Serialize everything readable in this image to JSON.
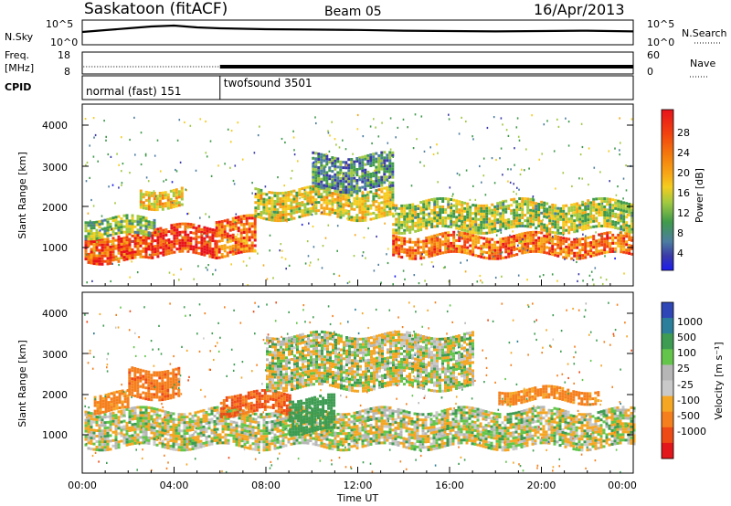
{
  "header": {
    "station": "Saskatoon (fitACF)",
    "beam": "Beam 05",
    "date": "16/Apr/2013"
  },
  "noise_panel": {
    "left_label": "N.Sky",
    "right_label": "N.Search",
    "left_ticks": [
      "10^5",
      "10^0"
    ],
    "right_ticks": [
      "10^5",
      "10^0"
    ]
  },
  "freq_panel": {
    "left_label_line1": "Freq.",
    "left_label_line2": "[MHz]",
    "right_label": "Nave",
    "left_ticks": [
      "18",
      "8"
    ],
    "right_ticks": [
      "60",
      "0"
    ]
  },
  "cpid": {
    "label": "CPID",
    "modes": [
      {
        "name": "normal (fast) 151",
        "start_hour": 0,
        "end_hour": 6
      },
      {
        "name": "twofsound 3501",
        "start_hour": 6,
        "end_hour": 24
      }
    ]
  },
  "power_panel": {
    "ylabel": "Slant Range [km]",
    "yticks": [
      "4000",
      "3000",
      "2000",
      "1000"
    ],
    "colorbar_label": "Power [dB]",
    "colorbar_ticks": [
      "28",
      "24",
      "20",
      "16",
      "12",
      "8",
      "4"
    ],
    "colors": [
      "#e8131b",
      "#f2420f",
      "#f47a0d",
      "#f7a616",
      "#f5cc1f",
      "#a0c941",
      "#3f9a4b",
      "#4c7ea0",
      "#3a3aa8",
      "#1c1cf0"
    ]
  },
  "velocity_panel": {
    "ylabel": "Slant Range [km]",
    "yticks": [
      "4000",
      "3000",
      "2000",
      "1000"
    ],
    "colorbar_label": "Velocity [m s⁻¹]",
    "colorbar_ticks": [
      "1000",
      "500",
      "100",
      "25",
      "-25",
      "-100",
      "-500",
      "-1000"
    ],
    "colors": [
      "#2f47b6",
      "#2c7f9a",
      "#3e9c52",
      "#63c64a",
      "#b6b6b6",
      "#c9c9c9",
      "#f5a623",
      "#f57f1d",
      "#ee4a16",
      "#e3161b"
    ]
  },
  "xaxis": {
    "ticks": [
      "00:00",
      "04:00",
      "08:00",
      "12:00",
      "16:00",
      "20:00",
      "00:00"
    ],
    "label": "Time UT"
  },
  "chart_data": [
    {
      "type": "line",
      "title": "N.Sky / N.Search",
      "x_range_hours": [
        0,
        24
      ],
      "ylim": [
        "10^0",
        "10^5"
      ],
      "yscale": "log",
      "x": [
        0,
        1,
        2,
        3,
        4,
        5,
        6,
        8,
        10,
        12,
        14,
        16,
        18,
        20,
        22,
        24
      ],
      "y_fraction_of_scale": [
        0.55,
        0.65,
        0.75,
        0.85,
        0.9,
        0.8,
        0.75,
        0.7,
        0.68,
        0.66,
        0.62,
        0.6,
        0.58,
        0.6,
        0.62,
        0.58
      ]
    },
    {
      "type": "line",
      "title": "Freq. / Nave",
      "x_range_hours": [
        0,
        24
      ],
      "freq_ylim_mhz": [
        8,
        18
      ],
      "nave_ylim": [
        0,
        60
      ],
      "segments": [
        {
          "start_hour": 0.05,
          "end_hour": 6,
          "freq_mhz": 11,
          "style": "dotted"
        },
        {
          "start_hour": 6,
          "end_hour": 24,
          "freq_mhz": "10–12",
          "style": "alternating"
        }
      ]
    },
    {
      "type": "heatmap",
      "title": "Power",
      "xlabel": "Time UT",
      "ylabel": "Slant Range [km]",
      "x_range_hours": [
        0,
        24
      ],
      "ylim_km": [
        180,
        4500
      ],
      "colorbar_range_db": [
        0,
        30
      ],
      "grid": false,
      "features": [
        {
          "start_hour": 0.1,
          "end_hour": 3.0,
          "range_low_km": 800,
          "range_high_km": 1400,
          "level_db": 26
        },
        {
          "start_hour": 0.1,
          "end_hour": 3.2,
          "range_low_km": 1400,
          "range_high_km": 1800,
          "level_db": 12
        },
        {
          "start_hour": 2.5,
          "end_hour": 4.3,
          "range_low_km": 2100,
          "range_high_km": 2500,
          "level_db": 18
        },
        {
          "start_hour": 3.0,
          "end_hour": 5.8,
          "range_low_km": 900,
          "range_high_km": 1600,
          "level_db": 28
        },
        {
          "start_hour": 5.8,
          "end_hour": 7.5,
          "range_low_km": 900,
          "range_high_km": 1800,
          "level_db": 24
        },
        {
          "start_hour": 7.5,
          "end_hour": 13.5,
          "range_low_km": 1800,
          "range_high_km": 2500,
          "level_db": 16
        },
        {
          "start_hour": 10.0,
          "end_hour": 13.5,
          "range_low_km": 2500,
          "range_high_km": 3300,
          "level_db": 8
        },
        {
          "start_hour": 13.5,
          "end_hour": 23.9,
          "range_low_km": 900,
          "range_high_km": 1400,
          "level_db": 24
        },
        {
          "start_hour": 13.5,
          "end_hour": 23.9,
          "range_low_km": 1500,
          "range_high_km": 2200,
          "level_db": 14
        }
      ]
    },
    {
      "type": "heatmap",
      "title": "Velocity",
      "xlabel": "Time UT",
      "ylabel": "Slant Range [km]",
      "x_range_hours": [
        0,
        24
      ],
      "ylim_km": [
        180,
        4500
      ],
      "colorbar_range_ms": [
        -1000,
        1000
      ],
      "grid": false,
      "features": [
        {
          "start_hour": 0.1,
          "end_hour": 24,
          "range_low_km": 800,
          "range_high_km": 1700,
          "velocity_ms": 0
        },
        {
          "start_hour": 0.5,
          "end_hour": 2.0,
          "range_low_km": 1700,
          "range_high_km": 2100,
          "velocity_ms": -150
        },
        {
          "start_hour": 2.0,
          "end_hour": 4.2,
          "range_low_km": 2000,
          "range_high_km": 2700,
          "velocity_ms": -250
        },
        {
          "start_hour": 6.0,
          "end_hour": 9.0,
          "range_low_km": 1600,
          "range_high_km": 2100,
          "velocity_ms": -300
        },
        {
          "start_hour": 9.0,
          "end_hour": 11.0,
          "range_low_km": 1200,
          "range_high_km": 2000,
          "velocity_ms": 150
        },
        {
          "start_hour": 8.0,
          "end_hour": 17.0,
          "range_low_km": 2200,
          "range_high_km": 3500,
          "velocity_ms": 0
        },
        {
          "start_hour": 18.0,
          "end_hour": 22.5,
          "range_low_km": 1900,
          "range_high_km": 2200,
          "velocity_ms": -150
        }
      ]
    }
  ]
}
